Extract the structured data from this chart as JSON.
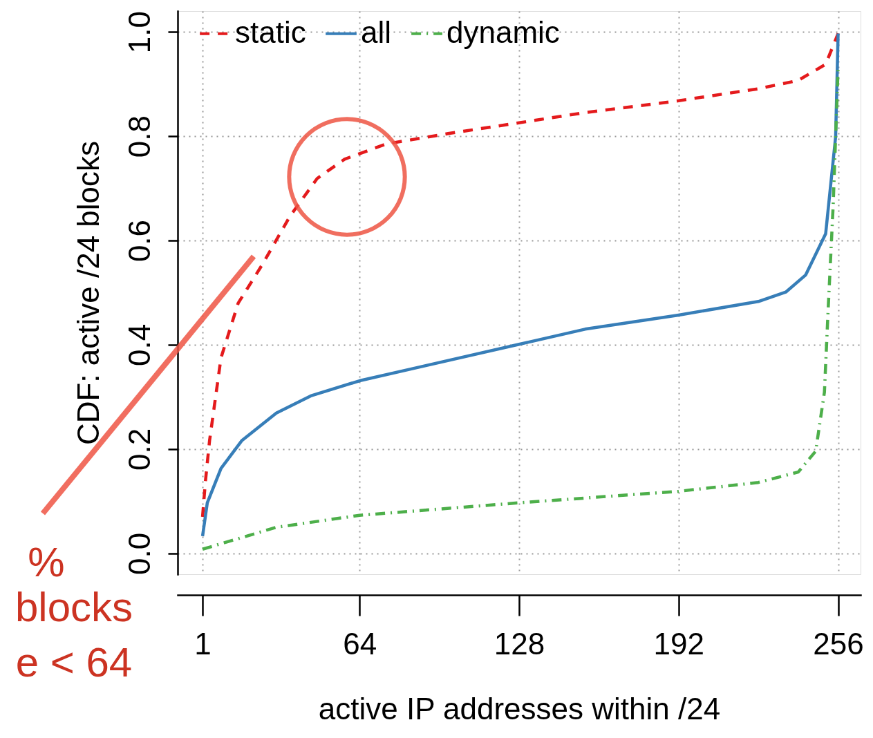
{
  "chart_data": {
    "type": "line",
    "xlabel": "active IP addresses within /24",
    "ylabel": "CDF: active /24 blocks",
    "x": [
      1,
      2.1,
      3.8,
      8.4,
      15.3,
      25,
      36,
      47,
      58,
      74.6,
      99.5,
      127,
      154,
      192,
      224,
      240,
      251,
      256
    ],
    "series": [
      {
        "name": "static",
        "color": "#e41a1c",
        "line_style": "dashed",
        "values": [
          0.07,
          0.136,
          0.216,
          0.375,
          0.48,
          0.554,
          0.646,
          0.719,
          0.756,
          0.785,
          0.805,
          0.825,
          0.845,
          0.868,
          0.891,
          0.907,
          0.938,
          0.997
        ]
      },
      {
        "name": "all",
        "color": "#377eb8",
        "line_style": "solid",
        "x": [
          1,
          2.9,
          8.4,
          16.7,
          30.6,
          44.4,
          64,
          86,
          128,
          154.5,
          192,
          224,
          235,
          243,
          251,
          253,
          255,
          256
        ],
        "values": [
          0.033,
          0.097,
          0.163,
          0.216,
          0.269,
          0.302,
          0.331,
          0.355,
          0.401,
          0.43,
          0.457,
          0.483,
          0.501,
          0.534,
          0.613,
          0.706,
          0.799,
          0.997
        ]
      },
      {
        "name": "dynamic",
        "color": "#4daf4a",
        "line_style": "dashdot",
        "x": [
          1,
          30.6,
          64,
          128,
          192,
          224,
          240,
          247,
          250.5,
          252,
          254,
          255,
          256
        ],
        "values": [
          0.008,
          0.05,
          0.073,
          0.097,
          0.119,
          0.136,
          0.156,
          0.196,
          0.309,
          0.468,
          0.666,
          0.799,
          0.931
        ]
      }
    ],
    "xlim": [
      -9,
      265
    ],
    "ylim": [
      -0.04,
      1.04
    ],
    "xticks": [
      1,
      64,
      128,
      192,
      256
    ],
    "yticks": [
      {
        "value": 0,
        "label": "0.0"
      },
      0.2,
      0.4,
      0.6,
      0.8,
      {
        "value": 1,
        "label": "1.0"
      }
    ],
    "grid": true,
    "legend": "top",
    "annotations": [
      "%",
      "blocks",
      "e < 64"
    ]
  }
}
